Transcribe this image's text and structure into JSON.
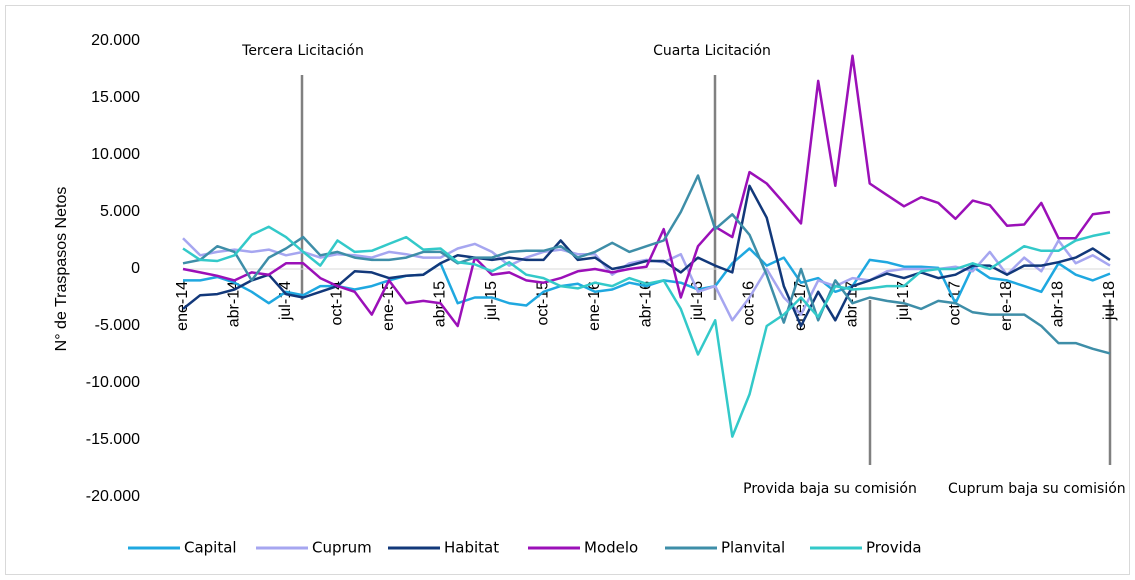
{
  "chart_data": {
    "type": "line",
    "y_label": "N° de Traspasos Netos",
    "annotations": [
      "Tercera Licitación",
      "Cuarta Licitación",
      "Provida baja su comisión",
      "Cuprum baja su comisión"
    ],
    "categories": [
      "ene-14",
      null,
      null,
      "abr-14",
      null,
      null,
      "jul-14",
      null,
      null,
      "oct-14",
      null,
      null,
      "ene-15",
      null,
      null,
      "abr-15",
      null,
      null,
      "jul-15",
      null,
      null,
      "oct-15",
      null,
      null,
      "ene-16",
      null,
      null,
      "abr-16",
      null,
      null,
      "jul-16",
      null,
      null,
      "oct-16",
      null,
      null,
      "ene-17",
      null,
      null,
      "abr-17",
      null,
      null,
      "jul-17",
      null,
      null,
      "oct-17",
      null,
      null,
      "ene-18",
      null,
      null,
      "abr-18",
      null,
      null,
      "jul-18"
    ],
    "ylim": [
      -20000,
      20000
    ],
    "yticks": [
      {
        "value": 20000,
        "label": "20.000"
      },
      {
        "value": 15000,
        "label": "15.000"
      },
      {
        "value": 10000,
        "label": "10.000"
      },
      {
        "value": 5000,
        "label": "5.000"
      },
      0,
      {
        "value": -5000,
        "label": "-5.000"
      },
      {
        "value": -10000,
        "label": "-10.000"
      },
      {
        "value": -15000,
        "label": "-15.000"
      },
      {
        "value": -20000,
        "label": "-20.000"
      }
    ],
    "legend": "bottom",
    "series": [
      {
        "name": "Capital",
        "color": "#1fa8e0",
        "values": [
          -1000,
          -1000,
          -700,
          -1200,
          -2000,
          -3000,
          -2000,
          -2300,
          -1500,
          -1500,
          -1800,
          -1500,
          -1000,
          -600,
          -500,
          500,
          -3000,
          -2500,
          -2500,
          -3000,
          -3200,
          -2000,
          -1500,
          -1300,
          -2000,
          -1800,
          -1200,
          -1500,
          -1000,
          -1200,
          -1800,
          -1500,
          500,
          1800,
          300,
          1000,
          -1200,
          -800,
          -2000,
          -1500,
          800,
          600,
          200,
          200,
          100,
          -3000,
          200,
          -800,
          -1000,
          -1500,
          -2000,
          500,
          -500,
          -1000,
          -400
        ]
      },
      {
        "name": "Cuprum",
        "color": "#a6a6f0",
        "values": [
          2700,
          1200,
          1500,
          1700,
          1500,
          1700,
          1200,
          1500,
          1000,
          1300,
          1200,
          1000,
          1500,
          1300,
          1000,
          1000,
          1800,
          2200,
          1500,
          300,
          1000,
          1500,
          1700,
          1300,
          1300,
          -500,
          500,
          800,
          600,
          1300,
          -2000,
          -1500,
          -4500,
          -2500,
          0,
          -2500,
          -4000,
          -1000,
          -1500,
          -800,
          -1000,
          -200,
          0,
          0,
          0,
          200,
          -200,
          1500,
          -500,
          1000,
          -200,
          2500,
          500,
          1200,
          300
        ]
      },
      {
        "name": "Habitat",
        "color": "#12387a",
        "values": [
          -3500,
          -2300,
          -2200,
          -1800,
          -1000,
          -500,
          -2200,
          -2500,
          -2000,
          -1500,
          -200,
          -300,
          -800,
          -600,
          -500,
          500,
          1200,
          1000,
          800,
          1000,
          800,
          800,
          2500,
          800,
          1000,
          0,
          300,
          700,
          700,
          -300,
          1000,
          300,
          -300,
          7300,
          4500,
          -1500,
          -5000,
          -2000,
          -4500,
          -1500,
          -1000,
          -400,
          -800,
          -300,
          -800,
          -500,
          300,
          300,
          -500,
          300,
          300,
          600,
          1000,
          1800,
          800
        ]
      },
      {
        "name": "Modelo",
        "color": "#9b10b8",
        "values": [
          0,
          -300,
          -600,
          -1000,
          -300,
          -500,
          500,
          500,
          -800,
          -1500,
          -2000,
          -4000,
          -1000,
          -3000,
          -2800,
          -3000,
          -5000,
          1000,
          -500,
          -300,
          -1000,
          -1200,
          -800,
          -200,
          0,
          -300,
          0,
          200,
          3500,
          -2500,
          2000,
          3700,
          2800,
          8500,
          7500,
          5800,
          4000,
          16500,
          7300,
          18700,
          7500,
          6500,
          5500,
          6300,
          5800,
          4400,
          6000,
          5600,
          3800,
          3900,
          5800,
          2700,
          2700,
          4800,
          5000
        ]
      },
      {
        "name": "Planvital",
        "color": "#3e8ea8",
        "values": [
          500,
          800,
          2000,
          1500,
          -1000,
          1000,
          1800,
          2800,
          1200,
          1500,
          1000,
          800,
          800,
          1000,
          1500,
          1500,
          500,
          1000,
          1000,
          1500,
          1600,
          1600,
          2000,
          1000,
          1500,
          2300,
          1500,
          2000,
          2500,
          5000,
          8200,
          3500,
          4800,
          3000,
          -500,
          -4700,
          0,
          -4500,
          -1000,
          -3000,
          -2500,
          -2800,
          -3000,
          -3500,
          -2800,
          -3000,
          -3800,
          -4000,
          -4000,
          -4000,
          -5000,
          -6500,
          -6500,
          -7000,
          -7400
        ]
      },
      {
        "name": "Provida",
        "color": "#33c9c9",
        "values": [
          1800,
          800,
          700,
          1200,
          3000,
          3700,
          2800,
          1500,
          300,
          2500,
          1500,
          1600,
          2200,
          2800,
          1700,
          1800,
          600,
          400,
          -200,
          600,
          -500,
          -800,
          -1500,
          -1700,
          -1200,
          -1500,
          -800,
          -1300,
          -1000,
          -3500,
          -7500,
          -4500,
          -14700,
          -11000,
          -5000,
          -4000,
          -2500,
          -4200,
          -1500,
          -1800,
          -1700,
          -1500,
          -1500,
          -200,
          0,
          0,
          500,
          0,
          1000,
          2000,
          1600,
          1600,
          2500,
          2900,
          3200
        ]
      }
    ]
  }
}
